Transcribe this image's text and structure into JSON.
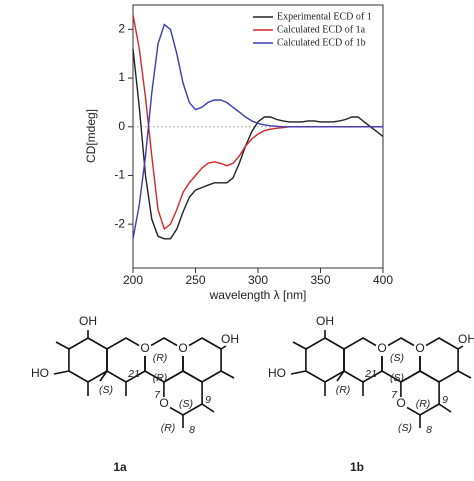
{
  "chart_data": {
    "type": "line",
    "x_label": "wavelength λ [nm]",
    "y_label": "CD[mdeg]",
    "x": [
      200,
      205,
      210,
      215,
      220,
      225,
      230,
      235,
      240,
      245,
      250,
      255,
      260,
      265,
      270,
      275,
      280,
      285,
      290,
      295,
      300,
      305,
      310,
      315,
      320,
      325,
      330,
      335,
      340,
      345,
      350,
      355,
      360,
      365,
      370,
      375,
      380,
      385,
      390,
      395,
      400
    ],
    "series": [
      {
        "name": "Experimental ECD of 1",
        "color": "#222222",
        "values": [
          1.6,
          0.4,
          -1.0,
          -1.9,
          -2.25,
          -2.3,
          -2.3,
          -2.1,
          -1.75,
          -1.45,
          -1.3,
          -1.25,
          -1.2,
          -1.15,
          -1.15,
          -1.15,
          -1.05,
          -0.75,
          -0.4,
          -0.1,
          0.1,
          0.2,
          0.2,
          0.15,
          0.12,
          0.1,
          0.1,
          0.1,
          0.12,
          0.12,
          0.1,
          0.1,
          0.1,
          0.12,
          0.15,
          0.2,
          0.2,
          0.1,
          0.0,
          -0.1,
          -0.2
        ]
      },
      {
        "name": "Calculated ECD of 1a",
        "color": "#d62728",
        "values": [
          2.3,
          1.6,
          0.6,
          -0.6,
          -1.7,
          -2.1,
          -2.0,
          -1.7,
          -1.35,
          -1.15,
          -1.0,
          -0.85,
          -0.75,
          -0.72,
          -0.75,
          -0.8,
          -0.75,
          -0.6,
          -0.4,
          -0.25,
          -0.15,
          -0.08,
          -0.05,
          -0.03,
          -0.02,
          0,
          0,
          0,
          0,
          0,
          0,
          0,
          0,
          0,
          0,
          0,
          0,
          0,
          0,
          0,
          0
        ]
      },
      {
        "name": "Calculated ECD of 1b",
        "color": "#3b3bb3",
        "values": [
          -2.3,
          -1.6,
          -0.6,
          0.7,
          1.7,
          2.1,
          2.0,
          1.5,
          0.9,
          0.5,
          0.35,
          0.4,
          0.5,
          0.55,
          0.55,
          0.5,
          0.4,
          0.3,
          0.2,
          0.12,
          0.07,
          0.04,
          0.02,
          0.01,
          0,
          0,
          0,
          0,
          0,
          0,
          0,
          0,
          0,
          0,
          0,
          0,
          0,
          0,
          0,
          0,
          0
        ]
      }
    ],
    "xlim": [
      200,
      400
    ],
    "ylim": [
      -2.9,
      2.5
    ],
    "xticks": [
      200,
      250,
      300,
      350,
      400
    ],
    "yticks": [
      2,
      1,
      0,
      -1,
      -2
    ],
    "legend": "upper right",
    "zero_line": true
  },
  "structures": [
    {
      "name": "1a",
      "labels": [
        "OH",
        "HO",
        "OH",
        "O",
        "O",
        "O",
        "(S)",
        "(R)",
        "21",
        "(R)",
        "7",
        "(S)",
        "9",
        "(R)",
        "8"
      ]
    },
    {
      "name": "1b",
      "labels": [
        "OH",
        "HO",
        "OH",
        "O",
        "O",
        "O",
        "(R)",
        "(S)",
        "21",
        "(S)",
        "7",
        "(R)",
        "9",
        "(S)",
        "8"
      ]
    }
  ]
}
